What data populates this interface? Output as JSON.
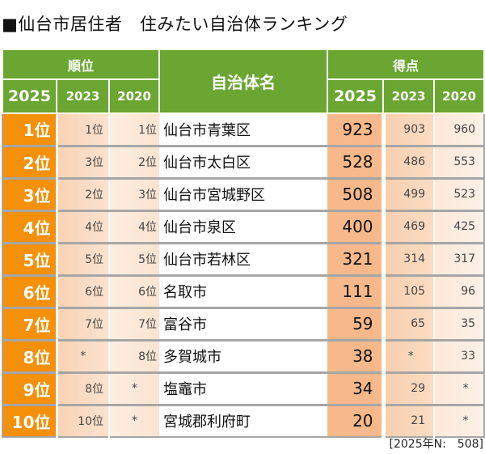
{
  "title": "■仙台市居住者　住みたい自治体ランキング",
  "header": {
    "rank_group": "順位",
    "name": "自治体名",
    "score_group": "得点",
    "years": [
      "2025",
      "2023",
      "2020"
    ]
  },
  "colors": {
    "header_green": "#6aa631",
    "rank_orange": "#f5900a",
    "score_peach": "#f7b98b",
    "grid_gray": "#a6a6a6"
  },
  "rows": [
    {
      "rank_2025": "1位",
      "rank_2023": "1位",
      "rank_2020": "1位",
      "name": "仙台市青葉区",
      "score_2025": "923",
      "score_2023": "903",
      "score_2020": "960"
    },
    {
      "rank_2025": "2位",
      "rank_2023": "3位",
      "rank_2020": "2位",
      "name": "仙台市太白区",
      "score_2025": "528",
      "score_2023": "486",
      "score_2020": "553"
    },
    {
      "rank_2025": "3位",
      "rank_2023": "2位",
      "rank_2020": "3位",
      "name": "仙台市宮城野区",
      "score_2025": "508",
      "score_2023": "499",
      "score_2020": "523"
    },
    {
      "rank_2025": "4位",
      "rank_2023": "4位",
      "rank_2020": "4位",
      "name": "仙台市泉区",
      "score_2025": "400",
      "score_2023": "469",
      "score_2020": "425"
    },
    {
      "rank_2025": "5位",
      "rank_2023": "5位",
      "rank_2020": "5位",
      "name": "仙台市若林区",
      "score_2025": "321",
      "score_2023": "314",
      "score_2020": "317"
    },
    {
      "rank_2025": "6位",
      "rank_2023": "6位",
      "rank_2020": "6位",
      "name": "名取市",
      "score_2025": "111",
      "score_2023": "105",
      "score_2020": "96"
    },
    {
      "rank_2025": "7位",
      "rank_2023": "7位",
      "rank_2020": "7位",
      "name": "富谷市",
      "score_2025": "59",
      "score_2023": "65",
      "score_2020": "35"
    },
    {
      "rank_2025": "8位",
      "rank_2023": "*",
      "rank_2020": "8位",
      "name": "多賀城市",
      "score_2025": "38",
      "score_2023": "*",
      "score_2020": "33"
    },
    {
      "rank_2025": "9位",
      "rank_2023": "8位",
      "rank_2020": "*",
      "name": "塩竈市",
      "score_2025": "34",
      "score_2023": "29",
      "score_2020": "*"
    },
    {
      "rank_2025": "10位",
      "rank_2023": "10位",
      "rank_2020": "*",
      "name": "宮城郡利府町",
      "score_2025": "20",
      "score_2023": "21",
      "score_2020": "*"
    }
  ],
  "note": "[2025年N:　508]"
}
